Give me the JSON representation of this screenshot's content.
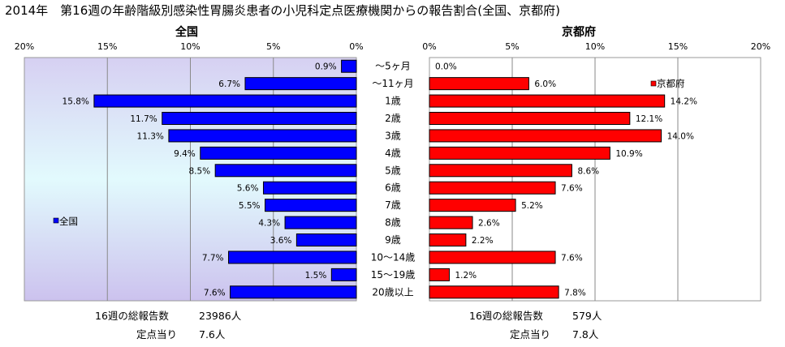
{
  "title": "2014年　第16週の年齢階級別感染性胃腸炎患者の小児科定点医療機関からの報告割合(全国、京都府)",
  "categories": [
    "～5ヶ月",
    "～11ヶ月",
    "1歳",
    "2歳",
    "3歳",
    "4歳",
    "5歳",
    "6歳",
    "7歳",
    "8歳",
    "9歳",
    "10～14歳",
    "15～19歳",
    "20歳以上"
  ],
  "colors": {
    "zenkoku": "#0000FF",
    "kyoto": "#FF0000"
  },
  "chart_data": [
    {
      "type": "bar",
      "orientation": "horizontal",
      "direction": "reversed",
      "title": "全国",
      "categories": [
        "～5ヶ月",
        "～11ヶ月",
        "1歳",
        "2歳",
        "3歳",
        "4歳",
        "5歳",
        "6歳",
        "7歳",
        "8歳",
        "9歳",
        "10～14歳",
        "15～19歳",
        "20歳以上"
      ],
      "series": [
        {
          "name": "全国",
          "values": [
            0.9,
            6.7,
            15.8,
            11.7,
            11.3,
            9.4,
            8.5,
            5.6,
            5.5,
            4.3,
            3.6,
            7.7,
            1.5,
            7.6
          ]
        }
      ],
      "data_labels": [
        "0.9%",
        "6.7%",
        "15.8%",
        "11.7%",
        "11.3%",
        "9.4%",
        "8.5%",
        "5.6%",
        "5.5%",
        "4.3%",
        "3.6%",
        "7.7%",
        "1.5%",
        "7.6%"
      ],
      "xlim": [
        0,
        20
      ],
      "ticks": [
        "20%",
        "15%",
        "10%",
        "5%",
        "0%"
      ],
      "grid": true,
      "legend": "left"
    },
    {
      "type": "bar",
      "orientation": "horizontal",
      "title": "京都府",
      "categories": [
        "～5ヶ月",
        "～11ヶ月",
        "1歳",
        "2歳",
        "3歳",
        "4歳",
        "5歳",
        "6歳",
        "7歳",
        "8歳",
        "9歳",
        "10～14歳",
        "15～19歳",
        "20歳以上"
      ],
      "series": [
        {
          "name": "京都府",
          "values": [
            0.0,
            6.0,
            14.2,
            12.1,
            14.0,
            10.9,
            8.6,
            7.6,
            5.2,
            2.6,
            2.2,
            7.6,
            1.2,
            7.8
          ]
        }
      ],
      "data_labels": [
        "0.0%",
        "6.0%",
        "14.2%",
        "12.1%",
        "14.0%",
        "10.9%",
        "8.6%",
        "7.6%",
        "5.2%",
        "2.6%",
        "2.2%",
        "7.6%",
        "1.2%",
        "7.8%"
      ],
      "xlim": [
        0,
        20
      ],
      "ticks": [
        "0%",
        "5%",
        "10%",
        "15%",
        "20%"
      ],
      "grid": true,
      "legend": "top-right"
    }
  ],
  "footer": {
    "left_total_label": "16週の総報告数",
    "left_total_value": "23986人",
    "left_per_label": "定点当り",
    "left_per_value": "7.6人",
    "right_total_label": "16週の総報告数",
    "right_total_value": "579人",
    "right_per_label": "定点当り",
    "right_per_value": "7.8人"
  }
}
